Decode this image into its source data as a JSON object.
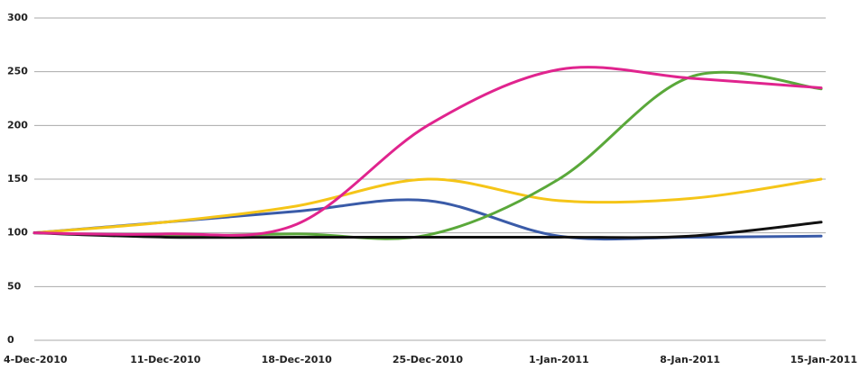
{
  "chart_data": {
    "type": "line",
    "smooth": true,
    "grid": true,
    "categories": [
      "4-Dec-2010",
      "11-Dec-2010",
      "18-Dec-2010",
      "25-Dec-2010",
      "1-Jan-2011",
      "8-Jan-2011",
      "15-Jan-2011"
    ],
    "series": [
      {
        "color": "#3a5ba8",
        "values": [
          100,
          110,
          120,
          130,
          97,
          96,
          97
        ]
      },
      {
        "color": "#f5c518",
        "values": [
          100,
          110,
          125,
          150,
          130,
          132,
          150
        ]
      },
      {
        "color": "#5aa83a",
        "values": [
          100,
          97,
          99,
          98,
          150,
          245,
          234
        ]
      },
      {
        "color": "#111111",
        "values": [
          100,
          96,
          96,
          96,
          96,
          97,
          110
        ]
      },
      {
        "color": "#e0248e",
        "values": [
          100,
          99,
          108,
          200,
          252,
          244,
          235
        ]
      }
    ],
    "ylim": [
      0,
      300
    ],
    "yticks": [
      0,
      50,
      100,
      150,
      200,
      250,
      300
    ]
  }
}
